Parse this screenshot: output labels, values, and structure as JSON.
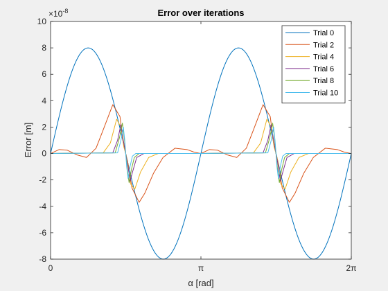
{
  "chart_data": {
    "type": "line",
    "title": "Error over iterations",
    "xlabel": "α [rad]",
    "ylabel": "Error [m]",
    "exponent_label": "×10",
    "exponent_power": "-8",
    "xlim": [
      0,
      6.2832
    ],
    "ylim": [
      -8,
      10
    ],
    "y_scale_note": "values in units of 1e-8 m",
    "xticks": [
      {
        "value": 0,
        "label": "0"
      },
      {
        "value": 3.1416,
        "label": "π"
      },
      {
        "value": 6.2832,
        "label": "2π"
      }
    ],
    "yticks": [
      -8,
      -6,
      -4,
      -2,
      0,
      2,
      4,
      6,
      8,
      10
    ],
    "grid": false,
    "legend_position": "top-right",
    "series": [
      {
        "name": "Trial 0",
        "color": "#0072BD",
        "x": [
          0,
          0.39,
          0.79,
          1.18,
          1.57,
          1.96,
          2.36,
          2.75,
          3.14,
          3.53,
          3.93,
          4.32,
          4.71,
          5.11,
          5.5,
          5.89,
          6.28
        ],
        "y": [
          0,
          5.66,
          8.0,
          5.66,
          0,
          -5.66,
          -8.0,
          -5.66,
          0,
          5.66,
          8.0,
          5.66,
          0,
          -5.66,
          -8.0,
          -5.66,
          0
        ]
      },
      {
        "name": "Trial 2",
        "color": "#D95319",
        "x": [
          0,
          0.18,
          0.35,
          0.55,
          0.75,
          0.95,
          1.1,
          1.3,
          1.45,
          1.52,
          1.57,
          1.62,
          1.7,
          1.85,
          1.97,
          2.15,
          2.35,
          2.6,
          2.85,
          3.0,
          3.14,
          3.32,
          3.49,
          3.69,
          3.89,
          4.09,
          4.24,
          4.44,
          4.59,
          4.66,
          4.71,
          4.76,
          4.84,
          4.99,
          5.11,
          5.29,
          5.49,
          5.74,
          5.99,
          6.14,
          6.28
        ],
        "y": [
          0,
          0.3,
          0.25,
          -0.1,
          -0.3,
          0.4,
          1.8,
          3.7,
          2.8,
          0.8,
          0,
          -0.8,
          -2.6,
          -3.7,
          -3.0,
          -1.5,
          -0.3,
          0.4,
          0.3,
          0.1,
          0,
          0.3,
          0.25,
          -0.1,
          -0.3,
          0.4,
          1.8,
          3.7,
          2.8,
          0.8,
          0,
          -0.8,
          -2.6,
          -3.7,
          -3.0,
          -1.5,
          -0.3,
          0.4,
          0.3,
          0.1,
          0
        ]
      },
      {
        "name": "Trial 4",
        "color": "#EDB120",
        "x": [
          0,
          1.1,
          1.25,
          1.38,
          1.47,
          1.53,
          1.57,
          1.61,
          1.67,
          1.76,
          1.88,
          2.05,
          2.25,
          3.14,
          4.24,
          4.39,
          4.52,
          4.61,
          4.67,
          4.71,
          4.75,
          4.81,
          4.9,
          5.02,
          5.19,
          5.39,
          6.28
        ],
        "y": [
          0,
          0.05,
          0.8,
          2.6,
          2.0,
          0.5,
          0,
          -0.6,
          -2.3,
          -2.7,
          -1.4,
          -0.3,
          0,
          0,
          0.05,
          0.8,
          2.6,
          2.0,
          0.5,
          0,
          -0.6,
          -2.3,
          -2.7,
          -1.4,
          -0.3,
          0,
          0
        ]
      },
      {
        "name": "Trial 6",
        "color": "#7E2F8E",
        "x": [
          0,
          1.3,
          1.4,
          1.47,
          1.52,
          1.57,
          1.62,
          1.66,
          1.72,
          1.8,
          1.95,
          3.14,
          4.44,
          4.54,
          4.61,
          4.66,
          4.71,
          4.76,
          4.8,
          4.86,
          4.94,
          5.09,
          6.28
        ],
        "y": [
          0,
          0.05,
          1.0,
          2.2,
          1.0,
          0,
          -1.0,
          -2.1,
          -1.3,
          -0.3,
          0,
          0,
          0.05,
          1.0,
          2.2,
          1.0,
          0,
          -1.0,
          -2.1,
          -1.3,
          -0.3,
          0,
          0
        ]
      },
      {
        "name": "Trial 8",
        "color": "#77AC30",
        "x": [
          0,
          1.35,
          1.44,
          1.5,
          1.54,
          1.57,
          1.6,
          1.64,
          1.69,
          1.75,
          1.85,
          3.14,
          4.49,
          4.58,
          4.64,
          4.68,
          4.71,
          4.74,
          4.78,
          4.83,
          4.89,
          4.99,
          6.28
        ],
        "y": [
          0,
          0.05,
          1.2,
          2.3,
          1.2,
          0,
          -1.1,
          -2.2,
          -1.2,
          -0.3,
          0,
          0,
          0.05,
          1.2,
          2.3,
          1.2,
          0,
          -1.1,
          -2.2,
          -1.2,
          -0.3,
          0,
          0
        ]
      },
      {
        "name": "Trial 10",
        "color": "#4DBEEE",
        "x": [
          0,
          1.4,
          1.47,
          1.52,
          1.55,
          1.57,
          1.59,
          1.62,
          1.66,
          1.71,
          1.78,
          3.14,
          4.54,
          4.61,
          4.66,
          4.69,
          4.71,
          4.73,
          4.76,
          4.8,
          4.85,
          4.92,
          6.28
        ],
        "y": [
          0,
          0.05,
          1.0,
          2.0,
          1.0,
          0,
          -1.0,
          -1.9,
          -1.0,
          -0.2,
          0,
          0,
          0.05,
          1.0,
          2.0,
          1.0,
          0,
          -1.0,
          -1.9,
          -1.0,
          -0.2,
          0,
          0
        ]
      }
    ]
  }
}
